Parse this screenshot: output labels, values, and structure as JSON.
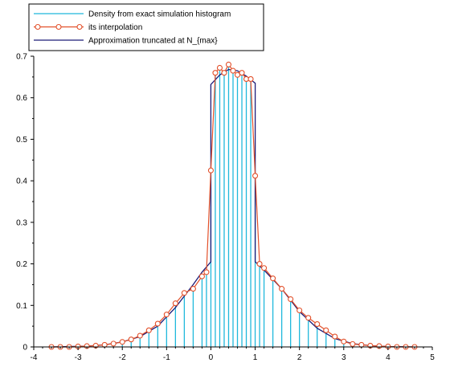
{
  "colors": {
    "histogram": "#1fb8dc",
    "interpolation": "#e2502a",
    "approximation": "#1c1c78",
    "axis": "#000000"
  },
  "legend": {
    "items": [
      {
        "label": "Density from exact simulation histogram",
        "style": "line",
        "color": "#1fb8dc"
      },
      {
        "label": "its interpolation",
        "style": "line-markers",
        "color": "#e2502a"
      },
      {
        "label": "Approximation truncated at N_{max}",
        "style": "line",
        "color": "#1c1c78"
      }
    ]
  },
  "chart_data": {
    "type": "bar",
    "xlim": [
      -4,
      5
    ],
    "ylim": [
      0,
      0.7
    ],
    "x_ticks": [
      -4,
      -3,
      -2,
      -1,
      0,
      1,
      2,
      3,
      4,
      5
    ],
    "y_ticks": [
      0,
      0.1,
      0.2,
      0.3,
      0.4,
      0.5,
      0.6,
      0.7
    ],
    "x_tick_labels": [
      "-4",
      "-3",
      "-2",
      "-1",
      "0",
      "1",
      "2",
      "3",
      "4",
      "5"
    ],
    "y_tick_labels": [
      "0",
      "0.1",
      "0.2",
      "0.3",
      "0.4",
      "0.5",
      "0.6",
      "0.7"
    ],
    "grid": false,
    "legend_position": "top-left",
    "series": [
      {
        "name": "Density from exact simulation histogram",
        "type": "bar",
        "x": [
          -3.6,
          -3.4,
          -3.2,
          -3.0,
          -2.8,
          -2.6,
          -2.4,
          -2.2,
          -2.0,
          -1.8,
          -1.6,
          -1.4,
          -1.2,
          -1.0,
          -0.8,
          -0.6,
          -0.4,
          -0.2,
          -0.1,
          0.0,
          0.1,
          0.2,
          0.3,
          0.4,
          0.5,
          0.6,
          0.7,
          0.8,
          0.9,
          1.0,
          1.1,
          1.2,
          1.4,
          1.6,
          1.8,
          2.0,
          2.2,
          2.4,
          2.6,
          2.8,
          3.0,
          3.2,
          3.4,
          3.6,
          3.8,
          4.0,
          4.2,
          4.4,
          4.6
        ],
        "y": [
          0.0,
          0.0,
          0.0,
          0.001,
          0.002,
          0.003,
          0.005,
          0.008,
          0.012,
          0.018,
          0.027,
          0.04,
          0.056,
          0.078,
          0.105,
          0.13,
          0.14,
          0.17,
          0.18,
          0.425,
          0.66,
          0.672,
          0.66,
          0.68,
          0.665,
          0.655,
          0.66,
          0.645,
          0.645,
          0.412,
          0.2,
          0.19,
          0.165,
          0.14,
          0.115,
          0.088,
          0.07,
          0.055,
          0.04,
          0.025,
          0.013,
          0.007,
          0.005,
          0.003,
          0.002,
          0.001,
          0.0,
          0.0,
          0.0
        ]
      },
      {
        "name": "its interpolation",
        "type": "line",
        "x": [
          -3.6,
          -3.4,
          -3.2,
          -3.0,
          -2.8,
          -2.6,
          -2.4,
          -2.2,
          -2.0,
          -1.8,
          -1.6,
          -1.4,
          -1.2,
          -1.0,
          -0.8,
          -0.6,
          -0.4,
          -0.2,
          -0.1,
          0.0,
          0.1,
          0.2,
          0.3,
          0.4,
          0.5,
          0.6,
          0.7,
          0.8,
          0.9,
          1.0,
          1.1,
          1.2,
          1.4,
          1.6,
          1.8,
          2.0,
          2.2,
          2.4,
          2.6,
          2.8,
          3.0,
          3.2,
          3.4,
          3.6,
          3.8,
          4.0,
          4.2,
          4.4,
          4.6
        ],
        "y": [
          0.0,
          0.0,
          0.0,
          0.001,
          0.002,
          0.003,
          0.005,
          0.008,
          0.012,
          0.018,
          0.027,
          0.04,
          0.056,
          0.078,
          0.105,
          0.13,
          0.14,
          0.17,
          0.18,
          0.425,
          0.66,
          0.672,
          0.66,
          0.68,
          0.665,
          0.655,
          0.66,
          0.645,
          0.645,
          0.412,
          0.2,
          0.19,
          0.165,
          0.14,
          0.115,
          0.088,
          0.07,
          0.055,
          0.04,
          0.025,
          0.013,
          0.007,
          0.005,
          0.003,
          0.002,
          0.001,
          0.0,
          0.0,
          0.0
        ]
      },
      {
        "name": "Approximation truncated at N_{max}",
        "type": "line",
        "x": [
          -3.6,
          -3.2,
          -2.8,
          -2.4,
          -2.0,
          -1.6,
          -1.2,
          -0.8,
          -0.4,
          -0.2,
          0.0,
          0.0,
          0.2,
          0.4,
          0.6,
          0.8,
          1.0,
          1.0,
          1.2,
          1.6,
          2.0,
          2.4,
          2.8,
          3.2,
          3.6,
          4.0,
          4.6
        ],
        "y": [
          0.0,
          0.001,
          0.002,
          0.005,
          0.012,
          0.025,
          0.05,
          0.095,
          0.15,
          0.18,
          0.205,
          0.632,
          0.655,
          0.668,
          0.665,
          0.652,
          0.635,
          0.205,
          0.185,
          0.14,
          0.085,
          0.045,
          0.02,
          0.008,
          0.003,
          0.001,
          0.0
        ]
      }
    ]
  }
}
